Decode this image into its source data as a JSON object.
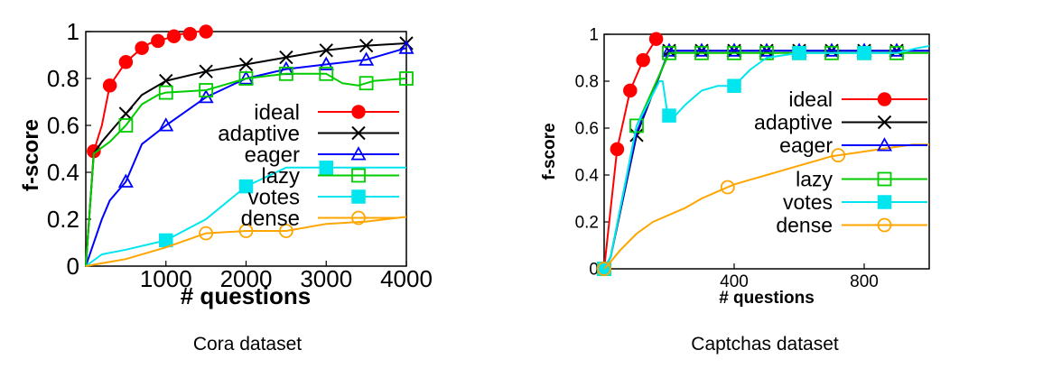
{
  "chart_data": [
    {
      "type": "line",
      "caption": "Cora dataset",
      "xlabel": "# questions",
      "ylabel": "f-score",
      "xlim": [
        0,
        4000
      ],
      "ylim": [
        0,
        1
      ],
      "x_ticks": [
        1000,
        2000,
        3000,
        4000
      ],
      "x_tick_labels": [
        "1000",
        "2000",
        "3000",
        "4000"
      ],
      "y_ticks": [
        0,
        0.2,
        0.4,
        0.6,
        0.8,
        1
      ],
      "y_tick_labels": [
        "0",
        "0.2",
        "0.4",
        "0.6",
        "0.8",
        "1"
      ],
      "grid": false,
      "legend_position": "right",
      "series": [
        {
          "name": "ideal",
          "color": "#ff0000",
          "marker": "filled-circle",
          "x": [
            0,
            100,
            200,
            300,
            400,
            500,
            600,
            700,
            800,
            900,
            1000,
            1100,
            1200,
            1300,
            1400,
            1500
          ],
          "y": [
            0,
            0.49,
            0.6,
            0.77,
            0.82,
            0.87,
            0.9,
            0.93,
            0.95,
            0.96,
            0.97,
            0.98,
            0.99,
            0.99,
            1.0,
            1.0
          ],
          "marker_x": [
            100,
            300,
            500,
            700,
            900,
            1100,
            1300,
            1500
          ]
        },
        {
          "name": "adaptive",
          "color": "#000000",
          "marker": "x",
          "x": [
            0,
            100,
            200,
            300,
            500,
            700,
            1000,
            1500,
            2000,
            2500,
            3000,
            3500,
            4000
          ],
          "y": [
            0,
            0.48,
            0.53,
            0.57,
            0.65,
            0.73,
            0.79,
            0.83,
            0.86,
            0.89,
            0.92,
            0.94,
            0.95
          ],
          "marker_x": [
            500,
            1000,
            1500,
            2000,
            2500,
            3000,
            3500,
            4000
          ]
        },
        {
          "name": "eager",
          "color": "#0000ff",
          "marker": "open-triangle",
          "x": [
            0,
            200,
            300,
            500,
            700,
            1000,
            1500,
            2000,
            2500,
            3000,
            3500,
            4000
          ],
          "y": [
            0,
            0.2,
            0.28,
            0.36,
            0.52,
            0.6,
            0.72,
            0.8,
            0.84,
            0.86,
            0.88,
            0.93
          ],
          "marker_x": [
            500,
            1000,
            1500,
            2000,
            2500,
            3000,
            3500,
            4000
          ]
        },
        {
          "name": "lazy",
          "color": "#00cc00",
          "marker": "open-square",
          "x": [
            0,
            100,
            300,
            500,
            700,
            900,
            1000,
            1500,
            2000,
            2500,
            3000,
            3200,
            3400,
            3600,
            4000
          ],
          "y": [
            0,
            0.48,
            0.53,
            0.6,
            0.69,
            0.73,
            0.74,
            0.75,
            0.8,
            0.82,
            0.82,
            0.78,
            0.77,
            0.79,
            0.8
          ],
          "marker_x": [
            500,
            1000,
            1500,
            2000,
            2500,
            3000,
            3500,
            4000
          ]
        },
        {
          "name": "votes",
          "color": "#00e5ee",
          "marker": "filled-square",
          "x": [
            0,
            200,
            500,
            1000,
            1500,
            2000,
            2500,
            3000,
            4000
          ],
          "y": [
            0,
            0.05,
            0.07,
            0.11,
            0.2,
            0.34,
            0.42,
            0.42,
            0.42
          ],
          "marker_x": [
            1000,
            2000,
            3000
          ]
        },
        {
          "name": "dense",
          "color": "#ffa500",
          "marker": "open-circle",
          "x": [
            0,
            500,
            1000,
            1500,
            2000,
            2500,
            3000,
            3500,
            4000
          ],
          "y": [
            0,
            0.03,
            0.08,
            0.14,
            0.15,
            0.15,
            0.18,
            0.19,
            0.21
          ],
          "marker_x": [
            1500,
            2000,
            2500
          ]
        }
      ]
    },
    {
      "type": "line",
      "caption": "Captchas dataset",
      "xlabel": "# questions",
      "ylabel": "f-score",
      "xlim": [
        0,
        1000
      ],
      "ylim": [
        0,
        1
      ],
      "x_ticks": [
        400,
        800
      ],
      "x_tick_labels": [
        "400",
        "800"
      ],
      "y_ticks": [
        0,
        0.2,
        0.4,
        0.6,
        0.8,
        1
      ],
      "y_tick_labels": [
        "0",
        "0.2",
        "0.4",
        "0.6",
        "0.8",
        "1"
      ],
      "grid": false,
      "legend_position": "right",
      "series": [
        {
          "name": "ideal",
          "color": "#ff0000",
          "marker": "filled-circle",
          "x": [
            0,
            40,
            80,
            120,
            160
          ],
          "y": [
            0,
            0.51,
            0.76,
            0.89,
            0.98
          ],
          "marker_x": [
            40,
            80,
            120,
            160
          ]
        },
        {
          "name": "adaptive",
          "color": "#000000",
          "marker": "x",
          "x": [
            0,
            20,
            100,
            200,
            300,
            400,
            500,
            600,
            700,
            800,
            900,
            1000
          ],
          "y": [
            0,
            0.05,
            0.57,
            0.93,
            0.93,
            0.93,
            0.93,
            0.93,
            0.93,
            0.93,
            0.93,
            0.93
          ],
          "marker_x": [
            100,
            200,
            300,
            400,
            500,
            600,
            700,
            800,
            900
          ]
        },
        {
          "name": "eager",
          "color": "#0000ff",
          "marker": "open-triangle",
          "x": [
            0,
            20,
            100,
            200,
            300,
            400,
            500,
            600,
            700,
            800,
            900,
            1000
          ],
          "y": [
            0,
            0.05,
            0.58,
            0.93,
            0.93,
            0.93,
            0.93,
            0.93,
            0.93,
            0.93,
            0.93,
            0.93
          ],
          "marker_x": [
            200,
            300,
            400,
            500,
            600,
            700,
            800,
            900
          ]
        },
        {
          "name": "lazy",
          "color": "#00cc00",
          "marker": "open-square",
          "x": [
            0,
            20,
            100,
            200,
            300,
            400,
            500,
            600,
            700,
            800,
            900,
            1000
          ],
          "y": [
            0,
            0.05,
            0.61,
            0.92,
            0.92,
            0.92,
            0.92,
            0.92,
            0.92,
            0.92,
            0.92,
            0.92
          ],
          "marker_x": [
            0,
            100,
            200,
            300,
            400,
            500,
            600,
            700,
            800,
            900
          ]
        },
        {
          "name": "votes",
          "color": "#00e5ee",
          "marker": "filled-square",
          "x": [
            0,
            20,
            100,
            170,
            180,
            195,
            210,
            250,
            300,
            350,
            400,
            450,
            500,
            600,
            700,
            800,
            900,
            960,
            1000
          ],
          "y": [
            0,
            0.05,
            0.61,
            0.8,
            0.8,
            0.66,
            0.64,
            0.7,
            0.76,
            0.78,
            0.78,
            0.85,
            0.9,
            0.92,
            0.92,
            0.92,
            0.92,
            0.94,
            0.95
          ],
          "marker_x": [
            0,
            200,
            400,
            600,
            800
          ]
        },
        {
          "name": "dense",
          "color": "#ffa500",
          "marker": "open-circle",
          "x": [
            0,
            20,
            50,
            100,
            150,
            200,
            250,
            300,
            350,
            400,
            450,
            500,
            550,
            600,
            650,
            700,
            750,
            800,
            850,
            900,
            950,
            1000
          ],
          "y": [
            0,
            0.03,
            0.08,
            0.15,
            0.2,
            0.23,
            0.26,
            0.3,
            0.33,
            0.36,
            0.38,
            0.4,
            0.42,
            0.44,
            0.46,
            0.48,
            0.49,
            0.5,
            0.51,
            0.52,
            0.53,
            0.53
          ],
          "marker_x": [
            0,
            380,
            720
          ]
        }
      ]
    }
  ]
}
